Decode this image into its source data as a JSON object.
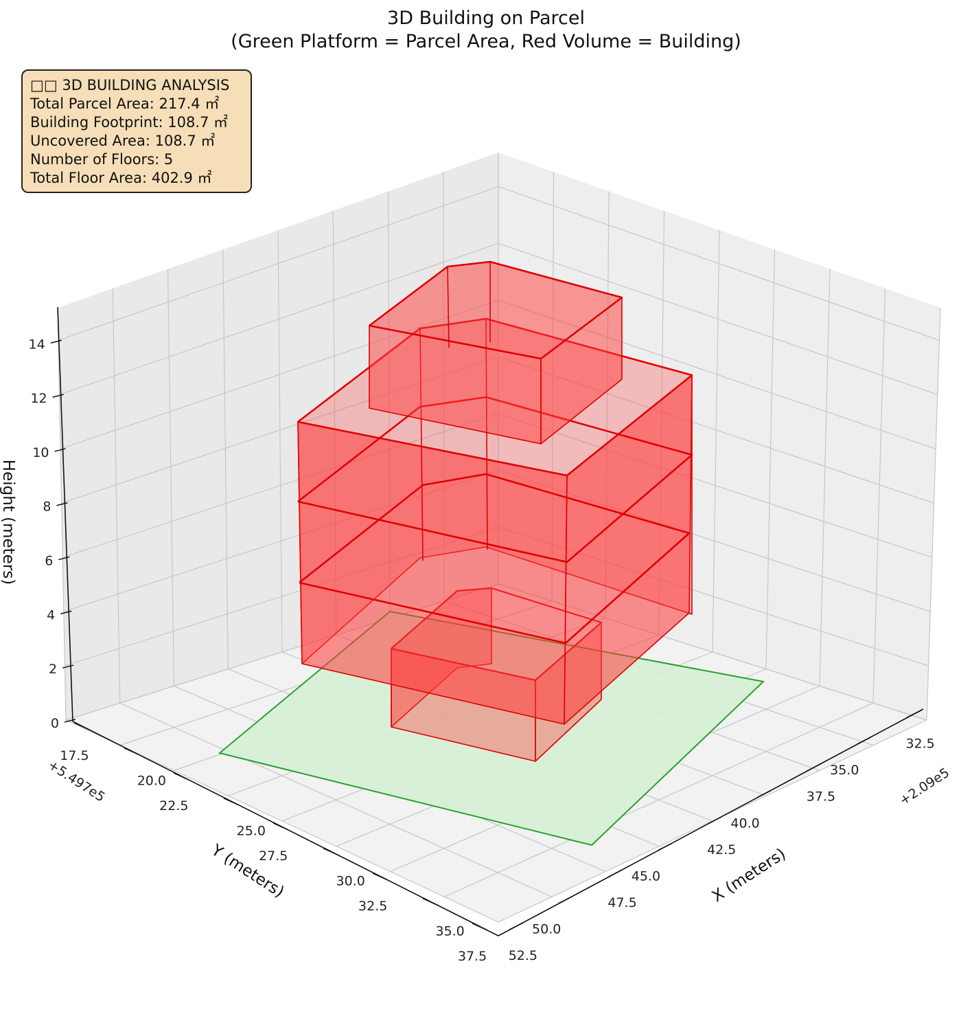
{
  "title": {
    "line1": "3D Building on Parcel",
    "line2": "(Green Platform = Parcel Area, Red Volume = Building)"
  },
  "info_box": {
    "heading": "□□ 3D BUILDING ANALYSIS",
    "total_parcel_area": "Total Parcel Area: 217.4 ㎡",
    "building_footprint": "Building Footprint: 108.7 ㎡",
    "uncovered_area": "Uncovered Area: 108.7 ㎡",
    "number_of_floors": "Number of Floors: 5",
    "total_floor_area": "Total Floor Area: 402.9 ㎡"
  },
  "chart_data": {
    "type": "3d-polygon",
    "title": "3D Building on Parcel\n(Green Platform = Parcel Area, Red Volume = Building)",
    "axes": {
      "x": {
        "label": "X (meters)",
        "offset_label": "+2.09e5",
        "ticks": [
          "32.5",
          "35.0",
          "37.5",
          "40.0",
          "42.5",
          "45.0",
          "47.5",
          "50.0",
          "52.5"
        ]
      },
      "y": {
        "label": "Y (meters)",
        "offset_label": "+5.497e5",
        "ticks": [
          "17.5",
          "20.0",
          "22.5",
          "25.0",
          "27.5",
          "30.0",
          "32.5",
          "35.0",
          "37.5"
        ]
      },
      "z": {
        "label": "Height (meters)",
        "ticks": [
          "0",
          "2",
          "4",
          "6",
          "8",
          "10",
          "12",
          "14"
        ]
      }
    },
    "grid": true,
    "parcel": {
      "color": "#2ca02c",
      "fill": "#d4f0d4"
    },
    "building": {
      "color": "#e00000",
      "fill": "#ff3b3b",
      "floors": 5
    }
  }
}
